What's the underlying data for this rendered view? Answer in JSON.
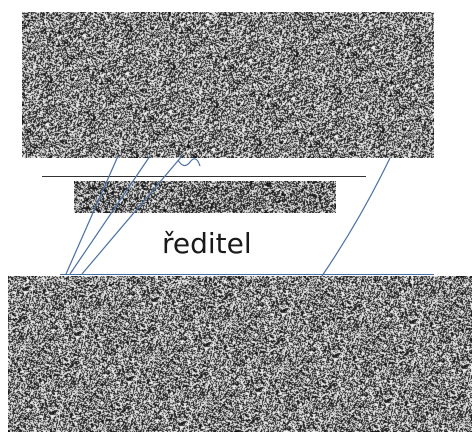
{
  "document": {
    "word": "ředitel"
  },
  "colors": {
    "ink": "#1a1a1a",
    "rule": "#333333",
    "pen": "#4a6fa5"
  }
}
